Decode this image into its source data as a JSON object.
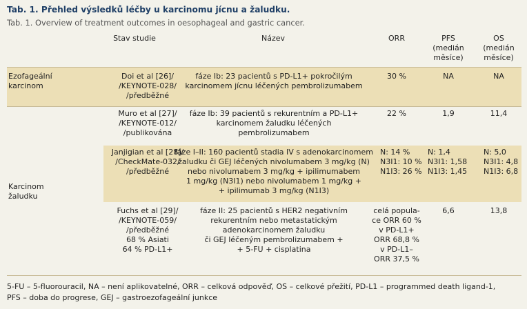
{
  "title": "Tab. 1. Přehled výsledků léčby u karcinomu jícnu a žaludku.",
  "subtitle": "Tab. 1. Overview of treatment outcomes in oesophageal and gastric cancer.",
  "headers": {
    "stav": "Stav studie",
    "nazev": "Název",
    "orr": "ORR",
    "pfs": [
      "PFS",
      "(medián",
      "měsíce)"
    ],
    "os": [
      "OS",
      "(medián",
      "měsíce)"
    ]
  },
  "groups": {
    "esophageal": [
      "Ezofageální",
      "karcinom"
    ],
    "gastric": [
      "Karcinom",
      "žaludku"
    ]
  },
  "rows": [
    {
      "study": [
        "Doi et al [26]/",
        "/KEYNOTE-028/",
        "/předběžné"
      ],
      "name": [
        "fáze Ib: 23 pacientů s PD-L1+ pokročilým",
        "karcinomem jícnu léčených pembrolizumabem"
      ],
      "orr": [
        "30 %"
      ],
      "pfs": [
        "NA"
      ],
      "os": [
        "NA"
      ]
    },
    {
      "study": [
        "Muro et al [27]/",
        "/KEYNOTE-012/",
        "/publikována"
      ],
      "name": [
        "fáze Ib: 39 pacientů s rekurentním a PD-L1+",
        "karcinomem žaludku léčených",
        "pembrolizumabem"
      ],
      "orr": [
        "22 %"
      ],
      "pfs": [
        "1,9"
      ],
      "os": [
        "11,4"
      ]
    },
    {
      "study": [
        "Janjigian et al [28]/",
        "/CheckMate-032/",
        "/předběžné"
      ],
      "name": [
        "fáze I–II: 160 pacientů stadia IV s adenokarcinomem",
        "žaludku či GEJ léčených nivolumabem 3 mg/kg (N)",
        "nebo nivolumabem 3 mg/kg + ipilimumabem",
        "1 mg/kg (N3I1) nebo nivolumabem 1 mg/kg +",
        "+ ipilimumab 3 mg/kg (N1I3)"
      ],
      "orr": [
        "N: 14 %",
        "N3I1: 10 %",
        "N1I3: 26 %"
      ],
      "pfs": [
        "N: 1,4",
        "N3I1: 1,58",
        "N1I3: 1,45"
      ],
      "os": [
        "N: 5,0",
        "N3I1: 4,8",
        "N1I3: 6,8"
      ]
    },
    {
      "study": [
        "Fuchs et al [29]/",
        "/KEYNOTE-059/",
        "/předběžné",
        "68 % Asiati",
        "64 % PD-L1+"
      ],
      "name": [
        "fáze II: 25 pacientů s HER2 negativním",
        "rekurentním nebo metastatickým",
        "adenokarcinomem žaludku",
        "či GEJ léčeným pembrolizumabem +",
        "+ 5-FU + cisplatina"
      ],
      "orr": [
        "celá popula-",
        "ce ORR 60 %",
        "v PD-L1+",
        "ORR 68,8 %",
        "v PD-L1–",
        "ORR 37,5 %"
      ],
      "pfs": [
        "6,6"
      ],
      "os": [
        "13,8"
      ]
    }
  ],
  "footnote": [
    "5-FU – 5-fluorouracil, NA – není aplikovatelné, ORR – celková odpověď, OS – celkové přežití, PD-L1 – programmed death ligand-1,",
    "PFS – doba do progrese, GEJ – gastroezofageální junkce"
  ]
}
